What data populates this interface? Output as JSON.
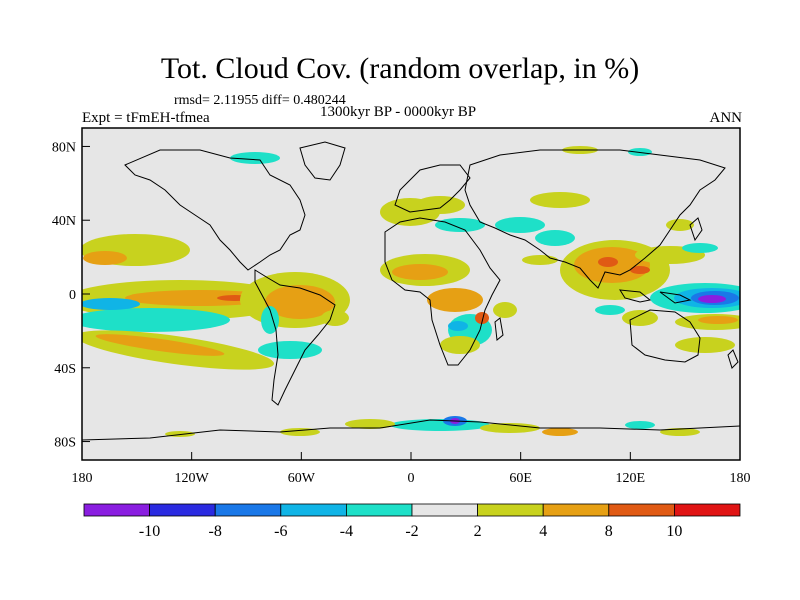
{
  "title": "Tot. Cloud Cov. (random overlap, in %)",
  "stats": "rmsd= 2.11955 diff= 0.480244",
  "period": "1300kyr BP - 0000kyr BP",
  "experiment": "Expt = tFmEH-tfmea",
  "season": "ANN",
  "lat_labels": [
    "80N",
    "40N",
    "0",
    "40S",
    "80S"
  ],
  "lon_labels": [
    "180",
    "120W",
    "60W",
    "0",
    "60E",
    "120E",
    "180"
  ],
  "colorbar": {
    "labels": [
      "-10",
      "-8",
      "-6",
      "-4",
      "-2",
      "2",
      "4",
      "8",
      "10"
    ],
    "colors": [
      "#8a1ee0",
      "#2a2ae0",
      "#1a78e8",
      "#10b4e6",
      "#1ee0c8",
      "#e6e6e6",
      "#c8d21e",
      "#e6a014",
      "#e05a14",
      "#e01414"
    ]
  },
  "palette": {
    "neutral": "#e6e6e6",
    "coast": "#000000"
  }
}
